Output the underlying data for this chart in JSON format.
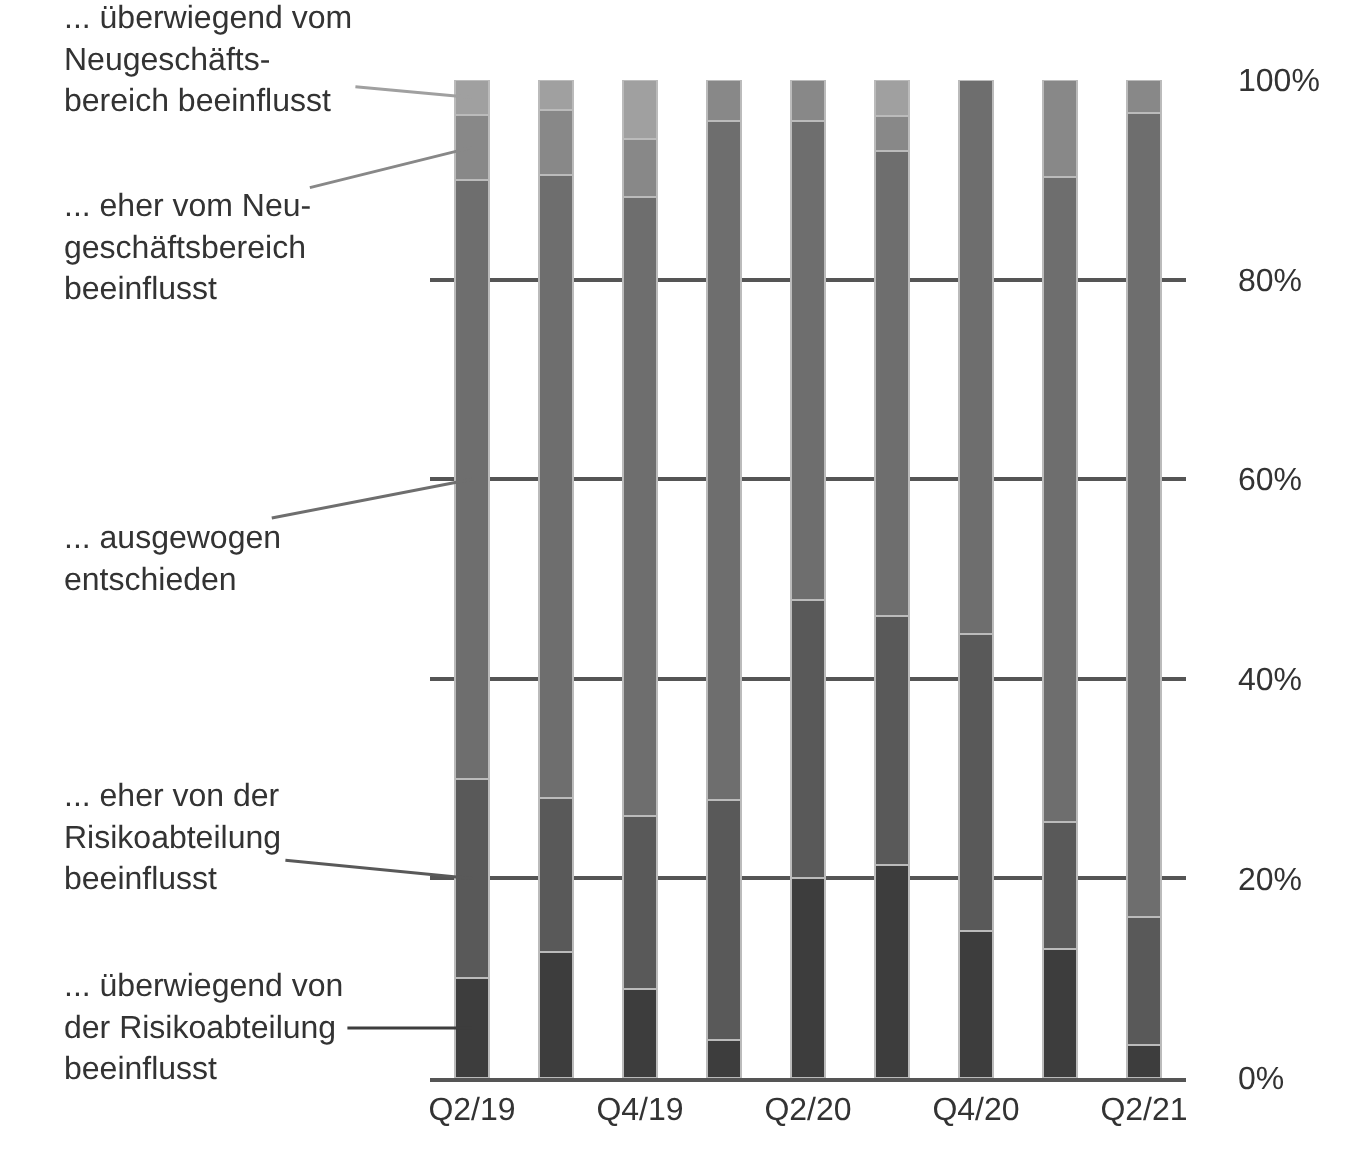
{
  "chart_data": {
    "type": "bar",
    "stacked": true,
    "legend": "left",
    "grid": "y",
    "categories": [
      "Q2/19",
      null,
      "Q4/19",
      null,
      "Q2/20",
      null,
      "Q4/20",
      null,
      "Q2/21"
    ],
    "ylim": [
      0,
      100
    ],
    "yticks": [
      {
        "value": 0,
        "label": "0%"
      },
      {
        "value": 20,
        "label": "20%"
      },
      {
        "value": 40,
        "label": "40%"
      },
      {
        "value": 60,
        "label": "60%"
      },
      {
        "value": 80,
        "label": "80%"
      },
      {
        "value": 100,
        "label": "100%"
      }
    ],
    "series": [
      {
        "name": "... überwiegend von\nder Risikoabteilung\nbeeinflusst",
        "color": "#3d3d3d",
        "values": [
          10,
          12.6,
          8.9,
          3.8,
          20,
          21.3,
          14.7,
          12.9,
          3.3
        ]
      },
      {
        "name": "... eher von der\nRisikoabteilung\nbeeinflusst",
        "color": "#595959",
        "values": [
          20,
          15.5,
          17.4,
          24.1,
          27.9,
          25,
          29.8,
          12.8,
          12.8
        ]
      },
      {
        "name": "... ausgewogen\nentschieden",
        "color": "#6e6e6e",
        "values": [
          60,
          62.4,
          62,
          68,
          48,
          46.6,
          55.5,
          64.6,
          80.6
        ]
      },
      {
        "name": "... eher vom Neu-\ngeschäftsbereich\nbeeinflusst",
        "color": "#888888",
        "values": [
          6.5,
          6.5,
          5.8,
          4.1,
          4.1,
          3.5,
          0,
          9.7,
          3.3
        ]
      },
      {
        "name": "... überwiegend vom\nNeugeschäfts-\nbereich beeinflusst",
        "color": "#a0a0a0",
        "values": [
          3.5,
          3,
          5.9,
          0,
          0,
          3.6,
          0,
          0,
          0
        ]
      }
    ]
  }
}
